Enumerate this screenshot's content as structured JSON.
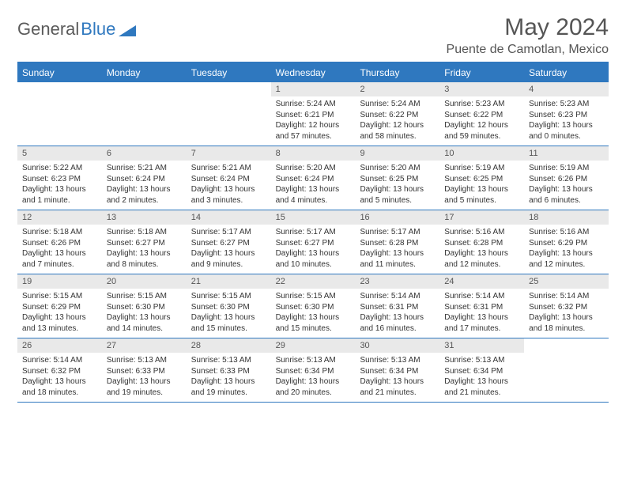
{
  "logo": {
    "part1": "General",
    "part2": "Blue"
  },
  "title": "May 2024",
  "location": "Puente de Camotlan, Mexico",
  "colors": {
    "header_bg": "#2f78bf",
    "daynum_bg": "#e9e9e9",
    "text": "#333333",
    "title_text": "#555555"
  },
  "day_names": [
    "Sunday",
    "Monday",
    "Tuesday",
    "Wednesday",
    "Thursday",
    "Friday",
    "Saturday"
  ],
  "weeks": [
    [
      {
        "n": "",
        "sr": "",
        "ss": "",
        "dl": ""
      },
      {
        "n": "",
        "sr": "",
        "ss": "",
        "dl": ""
      },
      {
        "n": "",
        "sr": "",
        "ss": "",
        "dl": ""
      },
      {
        "n": "1",
        "sr": "Sunrise: 5:24 AM",
        "ss": "Sunset: 6:21 PM",
        "dl": "Daylight: 12 hours and 57 minutes."
      },
      {
        "n": "2",
        "sr": "Sunrise: 5:24 AM",
        "ss": "Sunset: 6:22 PM",
        "dl": "Daylight: 12 hours and 58 minutes."
      },
      {
        "n": "3",
        "sr": "Sunrise: 5:23 AM",
        "ss": "Sunset: 6:22 PM",
        "dl": "Daylight: 12 hours and 59 minutes."
      },
      {
        "n": "4",
        "sr": "Sunrise: 5:23 AM",
        "ss": "Sunset: 6:23 PM",
        "dl": "Daylight: 13 hours and 0 minutes."
      }
    ],
    [
      {
        "n": "5",
        "sr": "Sunrise: 5:22 AM",
        "ss": "Sunset: 6:23 PM",
        "dl": "Daylight: 13 hours and 1 minute."
      },
      {
        "n": "6",
        "sr": "Sunrise: 5:21 AM",
        "ss": "Sunset: 6:24 PM",
        "dl": "Daylight: 13 hours and 2 minutes."
      },
      {
        "n": "7",
        "sr": "Sunrise: 5:21 AM",
        "ss": "Sunset: 6:24 PM",
        "dl": "Daylight: 13 hours and 3 minutes."
      },
      {
        "n": "8",
        "sr": "Sunrise: 5:20 AM",
        "ss": "Sunset: 6:24 PM",
        "dl": "Daylight: 13 hours and 4 minutes."
      },
      {
        "n": "9",
        "sr": "Sunrise: 5:20 AM",
        "ss": "Sunset: 6:25 PM",
        "dl": "Daylight: 13 hours and 5 minutes."
      },
      {
        "n": "10",
        "sr": "Sunrise: 5:19 AM",
        "ss": "Sunset: 6:25 PM",
        "dl": "Daylight: 13 hours and 5 minutes."
      },
      {
        "n": "11",
        "sr": "Sunrise: 5:19 AM",
        "ss": "Sunset: 6:26 PM",
        "dl": "Daylight: 13 hours and 6 minutes."
      }
    ],
    [
      {
        "n": "12",
        "sr": "Sunrise: 5:18 AM",
        "ss": "Sunset: 6:26 PM",
        "dl": "Daylight: 13 hours and 7 minutes."
      },
      {
        "n": "13",
        "sr": "Sunrise: 5:18 AM",
        "ss": "Sunset: 6:27 PM",
        "dl": "Daylight: 13 hours and 8 minutes."
      },
      {
        "n": "14",
        "sr": "Sunrise: 5:17 AM",
        "ss": "Sunset: 6:27 PM",
        "dl": "Daylight: 13 hours and 9 minutes."
      },
      {
        "n": "15",
        "sr": "Sunrise: 5:17 AM",
        "ss": "Sunset: 6:27 PM",
        "dl": "Daylight: 13 hours and 10 minutes."
      },
      {
        "n": "16",
        "sr": "Sunrise: 5:17 AM",
        "ss": "Sunset: 6:28 PM",
        "dl": "Daylight: 13 hours and 11 minutes."
      },
      {
        "n": "17",
        "sr": "Sunrise: 5:16 AM",
        "ss": "Sunset: 6:28 PM",
        "dl": "Daylight: 13 hours and 12 minutes."
      },
      {
        "n": "18",
        "sr": "Sunrise: 5:16 AM",
        "ss": "Sunset: 6:29 PM",
        "dl": "Daylight: 13 hours and 12 minutes."
      }
    ],
    [
      {
        "n": "19",
        "sr": "Sunrise: 5:15 AM",
        "ss": "Sunset: 6:29 PM",
        "dl": "Daylight: 13 hours and 13 minutes."
      },
      {
        "n": "20",
        "sr": "Sunrise: 5:15 AM",
        "ss": "Sunset: 6:30 PM",
        "dl": "Daylight: 13 hours and 14 minutes."
      },
      {
        "n": "21",
        "sr": "Sunrise: 5:15 AM",
        "ss": "Sunset: 6:30 PM",
        "dl": "Daylight: 13 hours and 15 minutes."
      },
      {
        "n": "22",
        "sr": "Sunrise: 5:15 AM",
        "ss": "Sunset: 6:30 PM",
        "dl": "Daylight: 13 hours and 15 minutes."
      },
      {
        "n": "23",
        "sr": "Sunrise: 5:14 AM",
        "ss": "Sunset: 6:31 PM",
        "dl": "Daylight: 13 hours and 16 minutes."
      },
      {
        "n": "24",
        "sr": "Sunrise: 5:14 AM",
        "ss": "Sunset: 6:31 PM",
        "dl": "Daylight: 13 hours and 17 minutes."
      },
      {
        "n": "25",
        "sr": "Sunrise: 5:14 AM",
        "ss": "Sunset: 6:32 PM",
        "dl": "Daylight: 13 hours and 18 minutes."
      }
    ],
    [
      {
        "n": "26",
        "sr": "Sunrise: 5:14 AM",
        "ss": "Sunset: 6:32 PM",
        "dl": "Daylight: 13 hours and 18 minutes."
      },
      {
        "n": "27",
        "sr": "Sunrise: 5:13 AM",
        "ss": "Sunset: 6:33 PM",
        "dl": "Daylight: 13 hours and 19 minutes."
      },
      {
        "n": "28",
        "sr": "Sunrise: 5:13 AM",
        "ss": "Sunset: 6:33 PM",
        "dl": "Daylight: 13 hours and 19 minutes."
      },
      {
        "n": "29",
        "sr": "Sunrise: 5:13 AM",
        "ss": "Sunset: 6:34 PM",
        "dl": "Daylight: 13 hours and 20 minutes."
      },
      {
        "n": "30",
        "sr": "Sunrise: 5:13 AM",
        "ss": "Sunset: 6:34 PM",
        "dl": "Daylight: 13 hours and 21 minutes."
      },
      {
        "n": "31",
        "sr": "Sunrise: 5:13 AM",
        "ss": "Sunset: 6:34 PM",
        "dl": "Daylight: 13 hours and 21 minutes."
      },
      {
        "n": "",
        "sr": "",
        "ss": "",
        "dl": ""
      }
    ]
  ]
}
